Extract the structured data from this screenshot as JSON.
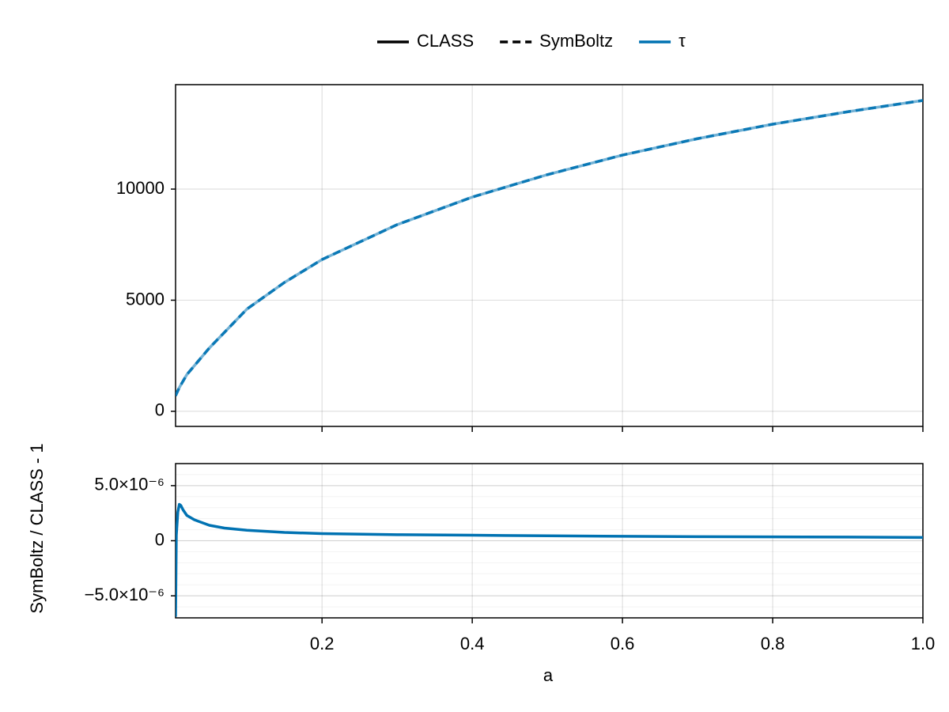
{
  "chart_data": [
    {
      "type": "line",
      "variable": "τ",
      "variable_color": "#0072b2",
      "x": [
        0.005,
        0.01,
        0.02,
        0.05,
        0.1,
        0.15,
        0.2,
        0.3,
        0.4,
        0.5,
        0.6,
        0.7,
        0.8,
        0.9,
        1.0
      ],
      "series": [
        {
          "name": "CLASS",
          "dash": "solid",
          "values": [
            700,
            1070,
            1650,
            2850,
            4600,
            5800,
            6830,
            8400,
            9640,
            10650,
            11530,
            12270,
            12920,
            13480,
            13990
          ]
        },
        {
          "name": "SymBoltz",
          "dash": "dashed",
          "values": [
            700,
            1070,
            1650,
            2850,
            4600,
            5800,
            6830,
            8400,
            9640,
            10650,
            11530,
            12270,
            12920,
            13480,
            13990
          ]
        }
      ],
      "xlim": [
        0.005,
        1
      ],
      "xticks": [
        0.2,
        0.4,
        0.6,
        0.8,
        1
      ],
      "ylim": [
        -680,
        14700
      ],
      "yticks": [
        0,
        5000,
        10000
      ],
      "grid": true
    },
    {
      "type": "line",
      "xlabel": "a",
      "ylabel": "SymBoltz / CLASS - 1",
      "color": "#0072b2",
      "x": [
        0.005,
        0.006,
        0.008,
        0.01,
        0.012,
        0.015,
        0.02,
        0.03,
        0.05,
        0.07,
        0.1,
        0.15,
        0.2,
        0.3,
        0.4,
        0.5,
        0.6,
        0.7,
        0.8,
        0.9,
        1.0
      ],
      "values": [
        -6.9e-06,
        5e-07,
        2.6e-06,
        3.3e-06,
        3.2e-06,
        2.8e-06,
        2.3e-06,
        1.9e-06,
        1.4e-06,
        1.15e-06,
        9.5e-07,
        7.5e-07,
        6.5e-07,
        5.5e-07,
        5e-07,
        4.5e-07,
        4e-07,
        3.7e-07,
        3.5e-07,
        3.3e-07,
        3e-07
      ],
      "xlim": [
        0.005,
        1
      ],
      "xticks": [
        0.2,
        0.4,
        0.6,
        0.8,
        {
          "value": 1,
          "label": "1.0"
        }
      ],
      "ylim": [
        -7e-06,
        7e-06
      ],
      "yticks": [
        {
          "value": -5e-06,
          "label": "−5.0×10⁻⁶"
        },
        0,
        {
          "value": 5e-06,
          "label": "5.0×10⁻⁶"
        }
      ],
      "grid": true,
      "yminor_step": 1e-06
    }
  ]
}
